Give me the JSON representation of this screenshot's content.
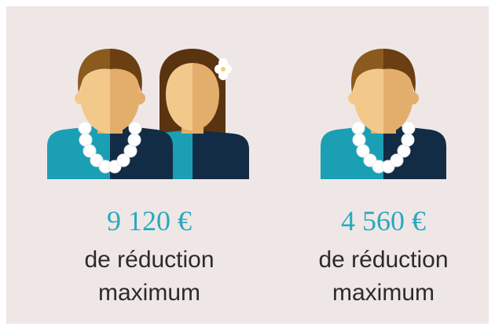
{
  "offers": [
    {
      "amount": "9 120 €",
      "label_lines": [
        "de réduction",
        "maximum"
      ]
    },
    {
      "amount": "4 560 €",
      "label_lines": [
        "de réduction",
        "maximum"
      ]
    }
  ]
}
